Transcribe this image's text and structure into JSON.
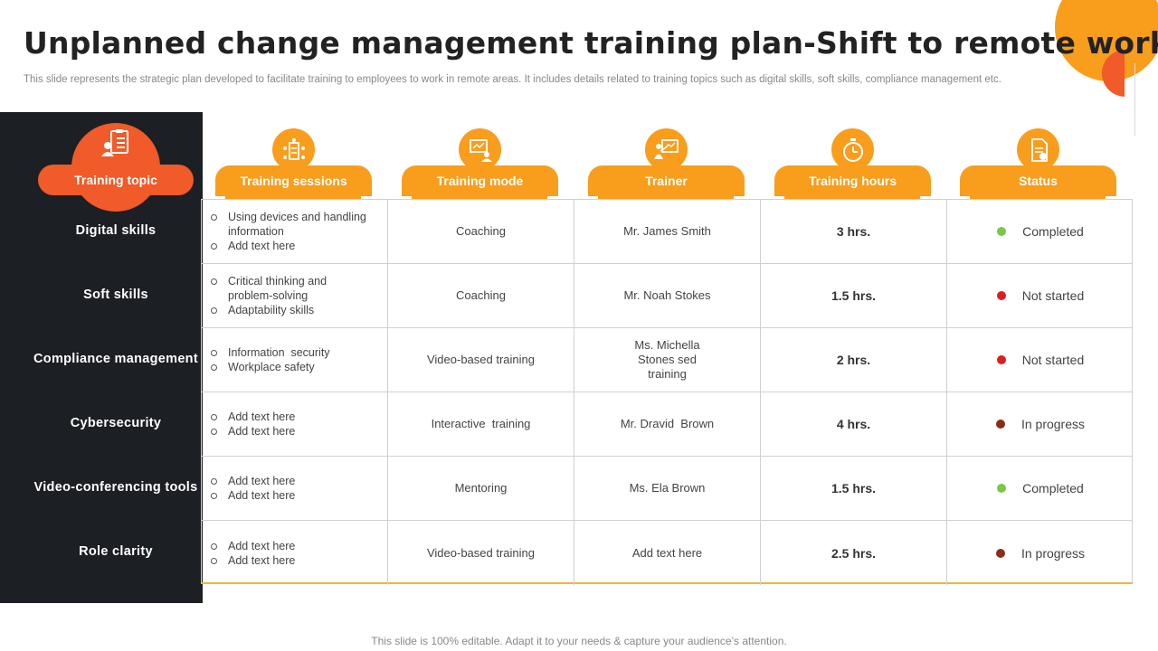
{
  "title": "Unplanned change management training plan-Shift to remote work",
  "subtitle": "This slide represents the strategic plan developed to facilitate training to employees to work in remote areas. It includes details related to training topics such as digital skills, soft skills, compliance management etc.",
  "headers": {
    "topic": "Training topic",
    "sessions": "Training sessions",
    "mode": "Training mode",
    "trainer": "Trainer",
    "hours": "Training hours",
    "status": "Status"
  },
  "colors": {
    "accent_orange": "#f99d1c",
    "accent_red": "#f15a29",
    "dark_panel": "#1c1f24",
    "status_completed": "#7ac943",
    "status_not_started": "#e01e1e",
    "status_in_progress": "#8b2e16"
  },
  "rows": [
    {
      "topic": "Digital skills",
      "sessions": [
        "Using devices and handling information",
        "Add text here"
      ],
      "mode": "Coaching",
      "trainer": "Mr. James Smith",
      "hours": "3 hrs.",
      "status": "Completed",
      "status_color": "#7ac943"
    },
    {
      "topic": "Soft skills",
      "sessions": [
        "Critical thinking and problem-solving",
        "Adaptability skills"
      ],
      "mode": "Coaching",
      "trainer": "Mr. Noah Stokes",
      "hours": "1.5 hrs.",
      "status": "Not started",
      "status_color": "#e01e1e"
    },
    {
      "topic": "Compliance management",
      "sessions": [
        "Information  security",
        "Workplace safety"
      ],
      "mode": "Video-based training",
      "trainer": "Ms. Michella Stones sed training",
      "hours": "2 hrs.",
      "status": "Not started",
      "status_color": "#e01e1e"
    },
    {
      "topic": "Cybersecurity",
      "sessions": [
        "Add text here",
        "Add text here"
      ],
      "mode": "Interactive  training",
      "trainer": "Mr. Dravid  Brown",
      "hours": "4 hrs.",
      "status": "In progress",
      "status_color": "#8b2e16"
    },
    {
      "topic": "Video-conferencing tools",
      "sessions": [
        "Add text here",
        "Add text here"
      ],
      "mode": "Mentoring",
      "trainer": "Ms. Ela Brown",
      "hours": "1.5 hrs.",
      "status": "Completed",
      "status_color": "#7ac943"
    },
    {
      "topic": "Role clarity",
      "sessions": [
        "Add text here",
        "Add text here"
      ],
      "mode": "Video-based training",
      "trainer": "Add text here",
      "hours": "2.5 hrs.",
      "status": "In progress",
      "status_color": "#8b2e16"
    }
  ],
  "footer": "This slide is 100% editable. Adapt it to your needs & capture your audience’s attention."
}
